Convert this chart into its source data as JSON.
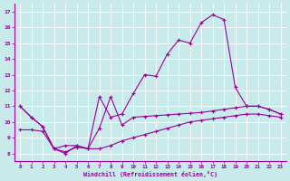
{
  "xlabel": "Windchill (Refroidissement éolien,°C)",
  "background_color": "#c8eaea",
  "line_color": "#990099",
  "ylim": [
    7.5,
    17.5
  ],
  "xlim": [
    -0.5,
    23.5
  ],
  "yticks": [
    8,
    9,
    10,
    11,
    12,
    13,
    14,
    15,
    16,
    17
  ],
  "xticks": [
    0,
    1,
    2,
    3,
    4,
    5,
    6,
    7,
    8,
    9,
    10,
    11,
    12,
    13,
    14,
    15,
    16,
    17,
    18,
    19,
    20,
    21,
    22,
    23
  ],
  "series_peaked_x": [
    0,
    1,
    2,
    3,
    4,
    5,
    6,
    7,
    8,
    9,
    10,
    11,
    12,
    13,
    14,
    15,
    16,
    17,
    18,
    19,
    20,
    21,
    22,
    23
  ],
  "series_peaked_y": [
    11.0,
    10.3,
    9.7,
    8.3,
    8.0,
    8.5,
    8.3,
    11.6,
    10.3,
    10.5,
    11.8,
    13.0,
    12.9,
    14.3,
    15.2,
    15.0,
    16.3,
    16.8,
    16.5,
    12.2,
    11.0,
    11.0,
    10.8,
    10.5
  ],
  "series_mid_x": [
    0,
    1,
    2,
    3,
    4,
    5,
    6,
    7,
    8,
    9,
    10,
    11,
    12,
    13,
    14,
    15,
    16,
    17,
    18,
    19,
    20,
    21,
    22,
    23
  ],
  "series_mid_y": [
    11.0,
    10.3,
    9.7,
    8.3,
    8.5,
    8.5,
    8.3,
    9.6,
    11.6,
    9.8,
    10.3,
    10.35,
    10.4,
    10.45,
    10.5,
    10.55,
    10.6,
    10.7,
    10.8,
    10.9,
    11.0,
    11.0,
    10.8,
    10.5
  ],
  "series_low_x": [
    0,
    1,
    2,
    3,
    4,
    5,
    6,
    7,
    8,
    9,
    10,
    11,
    12,
    13,
    14,
    15,
    16,
    17,
    18,
    19,
    20,
    21,
    22,
    23
  ],
  "series_low_y": [
    9.5,
    9.5,
    9.4,
    8.3,
    8.1,
    8.4,
    8.3,
    8.3,
    8.5,
    8.8,
    9.0,
    9.2,
    9.4,
    9.6,
    9.8,
    10.0,
    10.1,
    10.2,
    10.3,
    10.4,
    10.5,
    10.5,
    10.4,
    10.3
  ]
}
